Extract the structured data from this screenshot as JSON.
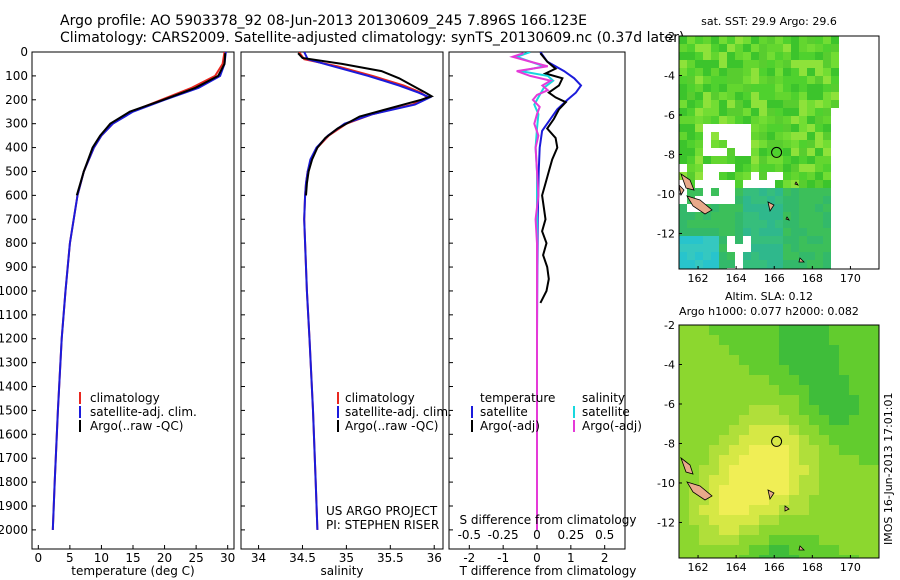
{
  "header": {
    "title_line1": "Argo profile: AO 5903378_92 08-Jun-2013 20130609_245 7.896S 166.123E",
    "title_line2": "Climatology: CARS2009. Satellite-adjusted climatology: synTS_20130609.nc (0.37d later)"
  },
  "credits": {
    "project": "US ARGO PROJECT",
    "pi": "PI: STEPHEN RISER",
    "imos_stamp": "IMOS 16-Jun-2013 17:01:01"
  },
  "colors": {
    "climatology": "#e8271f",
    "satellite": "#1b1bdb",
    "argo": "#000000",
    "salinity_satellite": "#18d8de",
    "salinity_argo": "#e53ad8",
    "marker": "#000000",
    "land": "#e8a98a"
  },
  "maps": {
    "sst": {
      "title": "sat. SST: 29.9 Argo: 29.6",
      "lon_ticks": [
        "162",
        "164",
        "166",
        "168",
        "170"
      ],
      "lat_ticks": [
        "-2",
        "-4",
        "-6",
        "-8",
        "-10",
        "-12"
      ],
      "marker_lon": 166.123,
      "marker_lat": -7.896
    },
    "sla": {
      "title_line1": "Altim. SLA: 0.12",
      "title_line2": "Argo h1000: 0.077 h2000: 0.082",
      "lon_ticks": [
        "162",
        "164",
        "166",
        "168",
        "170"
      ],
      "lat_ticks": [
        "-2",
        "-4",
        "-6",
        "-8",
        "-10",
        "-12"
      ],
      "marker_lon": 166.123,
      "marker_lat": -7.896
    }
  },
  "chart_data": [
    {
      "id": "temperature",
      "type": "line",
      "xlabel": "temperature (deg C)",
      "ylabel": "",
      "xlim": [
        -1,
        31
      ],
      "ylim": [
        2080,
        0
      ],
      "xticks": [
        "0",
        "5",
        "10",
        "15",
        "20",
        "25",
        "30"
      ],
      "xtick_values": [
        0,
        5,
        10,
        15,
        20,
        25,
        30
      ],
      "yticks": [
        "0",
        "100",
        "200",
        "300",
        "400",
        "500",
        "600",
        "700",
        "800",
        "900",
        "1000",
        "1100",
        "1200",
        "1300",
        "1400",
        "1500",
        "1600",
        "1700",
        "1800",
        "1900",
        "2000"
      ],
      "ytick_values": [
        0,
        100,
        200,
        300,
        400,
        500,
        600,
        700,
        800,
        900,
        1000,
        1100,
        1200,
        1300,
        1400,
        1500,
        1600,
        1700,
        1800,
        1900,
        2000
      ],
      "legend": [
        "climatology",
        "satellite-adj. clim.",
        "Argo(..raw -QC)"
      ],
      "series": [
        {
          "name": "climatology",
          "color_key": "climatology",
          "depth": [
            0,
            50,
            100,
            150,
            200,
            250,
            300,
            350,
            400,
            500,
            600,
            800,
            1000,
            1200,
            1500,
            1800,
            2000
          ],
          "values": [
            29.5,
            29.2,
            28.0,
            24.3,
            19.5,
            14.8,
            11.8,
            10.0,
            8.8,
            7.2,
            6.2,
            5.0,
            4.3,
            3.7,
            3.1,
            2.6,
            2.3
          ]
        },
        {
          "name": "satellite-adj. clim.",
          "color_key": "satellite",
          "depth": [
            0,
            50,
            100,
            150,
            200,
            250,
            300,
            350,
            400,
            500,
            600,
            800,
            1000,
            1200,
            1500,
            1800,
            2000
          ],
          "values": [
            29.7,
            29.5,
            28.8,
            25.4,
            20.0,
            15.0,
            11.8,
            10.0,
            8.8,
            7.2,
            6.2,
            5.0,
            4.3,
            3.7,
            3.1,
            2.6,
            2.3
          ]
        },
        {
          "name": "Argo(..raw -QC)",
          "color_key": "argo",
          "depth": [
            5,
            50,
            100,
            150,
            200,
            250,
            300,
            350,
            400,
            500,
            600
          ],
          "values": [
            29.6,
            29.5,
            28.5,
            24.9,
            19.8,
            14.5,
            11.4,
            9.8,
            8.6,
            7.2,
            6.1
          ]
        }
      ]
    },
    {
      "id": "salinity",
      "type": "line",
      "xlabel": "salinity",
      "xlim": [
        33.8,
        36.1
      ],
      "ylim": [
        2080,
        0
      ],
      "xticks": [
        "34",
        "34.5",
        "35",
        "35.5",
        "36"
      ],
      "xtick_values": [
        34,
        34.5,
        35,
        35.5,
        36
      ],
      "legend": [
        "climatology",
        "satellite-adj. clim.",
        "Argo(..raw -QC)"
      ],
      "series": [
        {
          "name": "climatology",
          "color_key": "climatology",
          "depth": [
            0,
            30,
            60,
            100,
            140,
            170,
            190,
            220,
            260,
            300,
            350,
            400,
            450,
            500,
            550,
            600,
            700,
            800,
            1000,
            1200,
            1500,
            1800,
            2000
          ],
          "values": [
            34.46,
            34.52,
            34.9,
            35.3,
            35.65,
            35.85,
            35.92,
            35.75,
            35.3,
            35.0,
            34.8,
            34.67,
            34.6,
            34.56,
            34.54,
            34.53,
            34.52,
            34.53,
            34.55,
            34.58,
            34.62,
            34.65,
            34.67
          ]
        },
        {
          "name": "satellite-adj. clim.",
          "color_key": "satellite",
          "depth": [
            0,
            30,
            60,
            100,
            140,
            170,
            190,
            220,
            260,
            300,
            350,
            400,
            450,
            500,
            550,
            600,
            700,
            800,
            1000,
            1200,
            1500,
            1800,
            2000
          ],
          "values": [
            34.52,
            34.56,
            34.85,
            35.25,
            35.6,
            35.82,
            35.95,
            35.78,
            35.3,
            34.98,
            34.79,
            34.66,
            34.59,
            34.56,
            34.54,
            34.53,
            34.52,
            34.53,
            34.55,
            34.58,
            34.62,
            34.65,
            34.67
          ]
        },
        {
          "name": "Argo(..raw -QC)",
          "color_key": "argo",
          "depth": [
            5,
            25,
            50,
            80,
            110,
            140,
            170,
            185,
            200,
            230,
            270,
            320,
            360,
            400,
            450,
            500,
            550,
            600
          ],
          "values": [
            34.45,
            34.5,
            34.95,
            35.4,
            35.6,
            35.75,
            35.9,
            35.97,
            35.85,
            35.55,
            35.15,
            34.9,
            34.76,
            34.67,
            34.61,
            34.57,
            34.55,
            34.54
          ]
        }
      ]
    },
    {
      "id": "difference",
      "type": "line",
      "xlabel": "T difference from climatology",
      "xlabel_top": "S difference from climatology",
      "xlim": [
        -2.6,
        2.6
      ],
      "ylim": [
        2080,
        0
      ],
      "xticks": [
        "-2",
        "-1",
        "0",
        "1",
        "2"
      ],
      "xtick_values": [
        -2,
        -1,
        0,
        1,
        2
      ],
      "xticks_s": [
        "-0.5",
        "-0.25",
        "0",
        "0.25",
        "0.5"
      ],
      "xtick_s_values": [
        -0.5,
        -0.25,
        0,
        0.25,
        0.5
      ],
      "legend_temperature_title": "temperature",
      "legend_salinity_title": "salinity",
      "legend_temperature": [
        "satellite",
        "Argo(-adj)"
      ],
      "legend_salinity": [
        "satellite",
        "Argo(-adj)"
      ],
      "series": [
        {
          "name": "T satellite",
          "color_key": "satellite",
          "scale": "T",
          "depth": [
            0,
            40,
            80,
            110,
            140,
            170,
            200,
            240,
            280,
            330,
            400,
            500,
            700,
            900,
            1200,
            1600,
            2000
          ],
          "values": [
            0.1,
            0.3,
            0.8,
            1.1,
            1.3,
            1.15,
            0.9,
            0.6,
            0.4,
            0.15,
            0.08,
            0.05,
            0.02,
            0.01,
            0.0,
            0.0,
            0.0
          ]
        },
        {
          "name": "T Argo(-adj)",
          "color_key": "argo",
          "scale": "T",
          "depth": [
            5,
            40,
            70,
            90,
            110,
            140,
            170,
            190,
            210,
            240,
            280,
            320,
            360,
            400,
            450,
            500,
            550,
            600,
            650,
            700,
            750,
            800,
            850,
            900,
            950,
            1000,
            1050
          ],
          "values": [
            0.1,
            0.3,
            0.55,
            0.25,
            0.75,
            0.65,
            0.35,
            0.55,
            0.85,
            0.65,
            0.5,
            0.3,
            0.55,
            0.6,
            0.45,
            0.35,
            0.25,
            0.15,
            0.2,
            0.25,
            0.15,
            0.28,
            0.18,
            0.3,
            0.35,
            0.28,
            0.1
          ]
        },
        {
          "name": "S satellite",
          "color_key": "salinity_satellite",
          "scale": "S",
          "depth": [
            0,
            20,
            40,
            60,
            80,
            100,
            120,
            150,
            180,
            220,
            260,
            320,
            400,
            500,
            700,
            900,
            1200,
            1600,
            2000
          ],
          "values": [
            -0.05,
            -0.15,
            -0.05,
            0.05,
            -0.12,
            0.08,
            0.12,
            0.05,
            0.02,
            -0.02,
            0.01,
            0.0,
            -0.01,
            0.0,
            0.0,
            0.0,
            0.0,
            0.0,
            0.0
          ]
        },
        {
          "name": "S Argo(-adj)",
          "color_key": "salinity_argo",
          "scale": "S",
          "depth": [
            5,
            20,
            40,
            60,
            80,
            100,
            120,
            140,
            160,
            180,
            200,
            230,
            260,
            300,
            350,
            400,
            500,
            600,
            700,
            800,
            1000,
            1500,
            2000
          ],
          "values": [
            -0.1,
            -0.18,
            -0.05,
            0.08,
            -0.15,
            -0.05,
            0.1,
            0.04,
            0.08,
            0.0,
            -0.03,
            0.02,
            0.0,
            -0.02,
            0.01,
            -0.01,
            0.0,
            0.01,
            -0.01,
            0.0,
            0.0,
            0.0,
            0.0
          ]
        }
      ]
    }
  ]
}
